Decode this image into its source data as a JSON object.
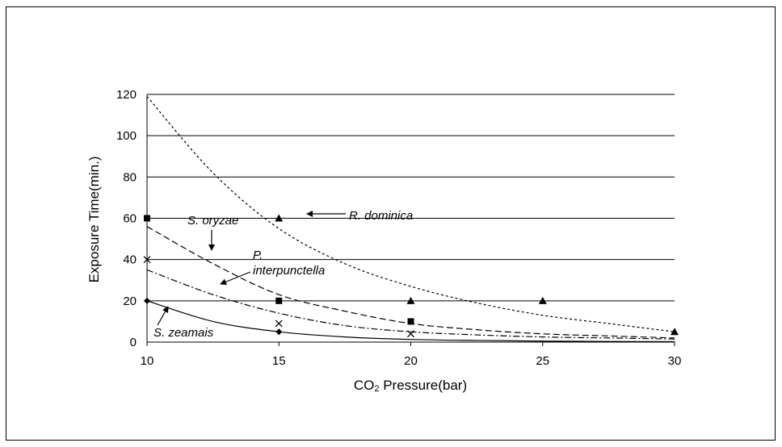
{
  "chart_data": {
    "type": "scatter",
    "xlabel_main": "CO",
    "xlabel_sub": "2",
    "xlabel_rest": " Pressure(bar)",
    "ylabel": "Exposure Time(min.)",
    "xlim": [
      10,
      30
    ],
    "ylim": [
      0,
      120
    ],
    "x_ticks": [
      "10",
      "15",
      "20",
      "25",
      "30"
    ],
    "y_ticks": [
      "0",
      "20",
      "40",
      "60",
      "80",
      "100",
      "120"
    ],
    "grid": "horizontal",
    "series": [
      {
        "name": "R. dominica",
        "marker": "triangle",
        "points": [
          [
            15,
            60
          ],
          [
            20,
            20
          ],
          [
            25,
            20
          ],
          [
            30,
            5
          ]
        ],
        "curve": [
          [
            10,
            119
          ],
          [
            12.5,
            82
          ],
          [
            15,
            55
          ],
          [
            17.5,
            38
          ],
          [
            20,
            27
          ],
          [
            22.5,
            19
          ],
          [
            25,
            13
          ],
          [
            27.5,
            9
          ],
          [
            30,
            5
          ]
        ]
      },
      {
        "name": "S. oryzae",
        "marker": "square",
        "points": [
          [
            10,
            60
          ],
          [
            15,
            20
          ],
          [
            20,
            10
          ]
        ],
        "curve": [
          [
            10,
            56
          ],
          [
            12.5,
            38
          ],
          [
            15,
            23
          ],
          [
            17.5,
            15
          ],
          [
            20,
            9
          ],
          [
            22.5,
            6
          ],
          [
            25,
            4
          ],
          [
            27.5,
            3
          ],
          [
            30,
            2
          ]
        ]
      },
      {
        "name": "P. interpunctella",
        "marker": "x",
        "points": [
          [
            10,
            40
          ],
          [
            15,
            9
          ],
          [
            20,
            4
          ]
        ],
        "curve": [
          [
            10,
            35
          ],
          [
            12.5,
            23
          ],
          [
            15,
            14
          ],
          [
            17.5,
            8
          ],
          [
            20,
            5
          ],
          [
            22.5,
            3.5
          ],
          [
            25,
            2.5
          ],
          [
            27.5,
            2
          ],
          [
            30,
            1.5
          ]
        ]
      },
      {
        "name": "S. zeamais",
        "marker": "diamond",
        "points": [
          [
            10,
            20
          ],
          [
            15,
            5
          ]
        ],
        "curve": [
          [
            10,
            20
          ],
          [
            12.5,
            10
          ],
          [
            15,
            5
          ],
          [
            17.5,
            2.5
          ],
          [
            20,
            1.3
          ],
          [
            22.5,
            0.8
          ],
          [
            25,
            0.5
          ],
          [
            27.5,
            0.3
          ],
          [
            30,
            0.2
          ]
        ]
      }
    ],
    "annotations": {
      "r_dominica": "R. dominica",
      "s_oryzae": "S. oryzae",
      "p_interpunctella_1": "P.",
      "p_interpunctella_2": "interpunctella",
      "s_zeamais": "S. zeamais"
    }
  }
}
